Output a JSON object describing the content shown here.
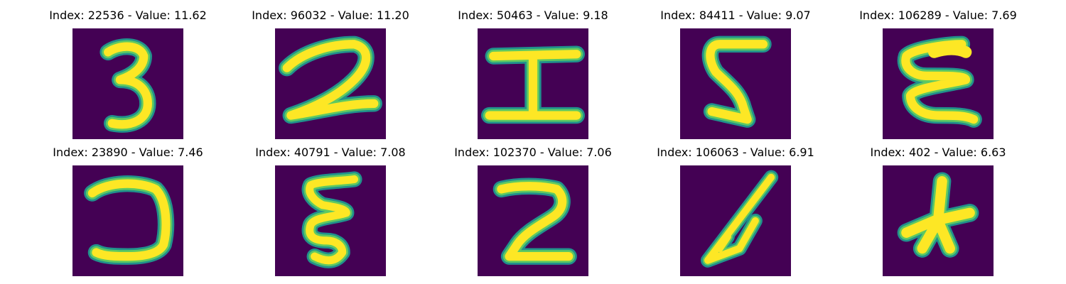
{
  "colors": {
    "background": "#440154",
    "stroke_edge": "#21918c",
    "stroke_mid": "#5ec962",
    "stroke_core": "#fde725"
  },
  "panels": [
    {
      "title": "Index: 22536 - Value: 11.62",
      "glyph": "3"
    },
    {
      "title": "Index: 96032 - Value: 11.20",
      "glyph": "2"
    },
    {
      "title": "Index: 50463 - Value: 9.18",
      "glyph": "I"
    },
    {
      "title": "Index: 84411 - Value: 9.07",
      "glyph": "mirrored-2"
    },
    {
      "title": "Index: 106289 - Value: 7.69",
      "glyph": "mirrored-3"
    },
    {
      "title": "Index: 23890 - Value: 7.46",
      "glyph": "mirrored-c"
    },
    {
      "title": "Index: 40791 - Value: 7.08",
      "glyph": "mirrored-3"
    },
    {
      "title": "Index: 102370 - Value: 7.06",
      "glyph": "mirrored-2"
    },
    {
      "title": "Index: 106063 - Value: 6.91",
      "glyph": "slanted-stroke"
    },
    {
      "title": "Index: 402 - Value: 6.63",
      "glyph": "blob"
    }
  ]
}
